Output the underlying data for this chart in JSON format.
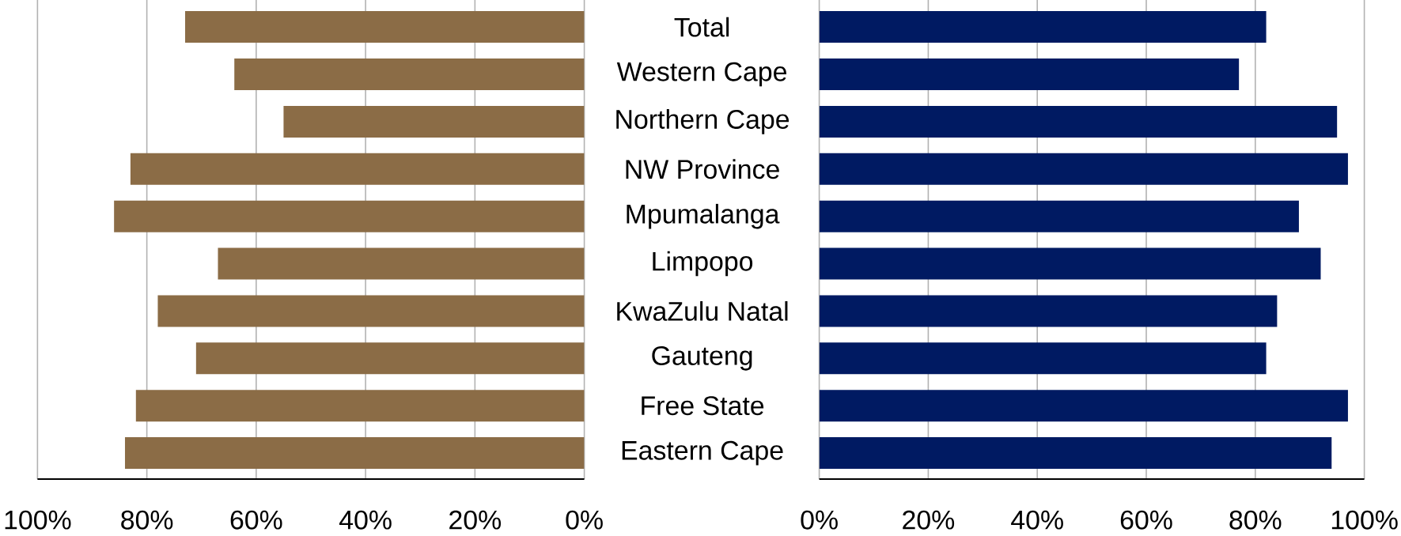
{
  "chart_data": [
    {
      "type": "bar",
      "orientation": "horizontal",
      "categories": [
        null,
        null,
        null,
        null,
        null,
        null,
        null,
        null,
        null,
        null
      ],
      "values": [
        73,
        64,
        55,
        83,
        86,
        67,
        78,
        71,
        82,
        84
      ],
      "color": "#8b6c46",
      "xlim": [
        100,
        0
      ],
      "xticks": [
        {
          "value": 100,
          "label": "100%"
        },
        {
          "value": 80,
          "label": "80%"
        },
        {
          "value": 60,
          "label": "60%"
        },
        {
          "value": 40,
          "label": "40%"
        },
        {
          "value": 20,
          "label": "20%"
        },
        {
          "value": 0,
          "label": "0%"
        }
      ],
      "grid": "x",
      "tick_labels": "x"
    },
    {
      "type": "bar",
      "orientation": "horizontal",
      "categories": [
        "Total",
        "Western Cape",
        "Northern Cape",
        "NW Province",
        "Mpumalanga",
        "Limpopo",
        "KwaZulu Natal",
        "Gauteng",
        "Free State",
        "Eastern Cape"
      ],
      "values": [
        82,
        77,
        95,
        97,
        88,
        92,
        84,
        82,
        97,
        94
      ],
      "color": "#001a62",
      "xlim": [
        0,
        100
      ],
      "xticks": [
        {
          "value": 0,
          "label": "0%"
        },
        {
          "value": 20,
          "label": "20%"
        },
        {
          "value": 40,
          "label": "40%"
        },
        {
          "value": 60,
          "label": "60%"
        },
        {
          "value": 80,
          "label": "80%"
        },
        {
          "value": 100,
          "label": "100%"
        }
      ],
      "grid": "x"
    }
  ]
}
